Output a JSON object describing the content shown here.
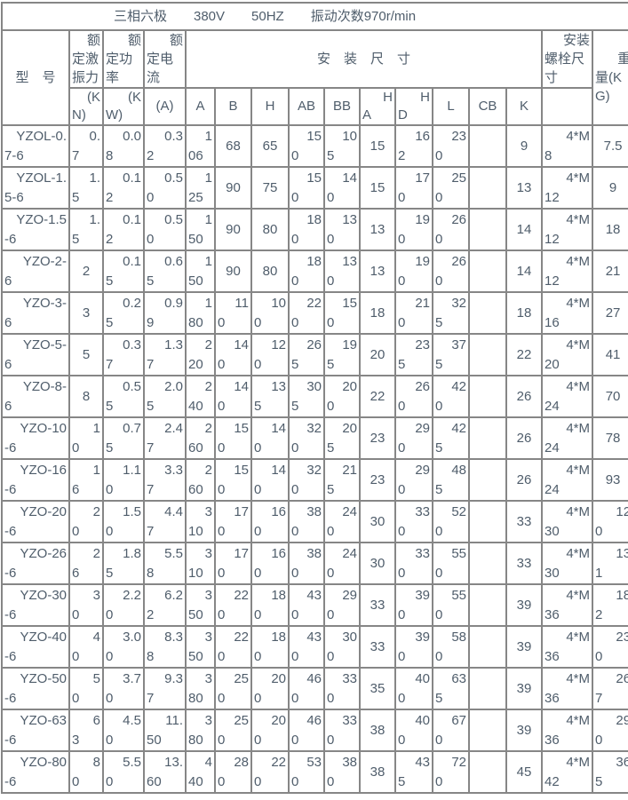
{
  "title": "三相六极　　380V　　50HZ　　振动次数970r/min",
  "table": {
    "headers": {
      "model": "型　号",
      "force": "额定激振力",
      "force_unit": "(KN)",
      "power": "额定功率",
      "power_unit": "(KW)",
      "current": "额定电流",
      "current_unit": "(A)",
      "dims": "安　装　尺　寸",
      "dim_cols": [
        "A",
        "B",
        "H",
        "AB",
        "BB",
        "HA",
        "HD",
        "L",
        "CB",
        "K"
      ],
      "bolt": "安装螺栓尺寸",
      "weight": "重量(KG)"
    },
    "rows": [
      {
        "model": "YZOL-0.7-6",
        "force": "0.7",
        "power": "0.08",
        "current": "0.32",
        "A": "106",
        "B": "68",
        "H": "65",
        "AB": "150",
        "BB": "105",
        "HA": "15",
        "HD": "162",
        "L": "230",
        "CB": "",
        "K": "9",
        "bolt": "4*M8",
        "weight": "7.5"
      },
      {
        "model": "YZOL-1.5-6",
        "force": "1.5",
        "power": "0.12",
        "current": "0.50",
        "A": "125",
        "B": "90",
        "H": "75",
        "AB": "150",
        "BB": "140",
        "HA": "15",
        "HD": "170",
        "L": "250",
        "CB": "",
        "K": "13",
        "bolt": "4*M12",
        "weight": "9"
      },
      {
        "model": "YZO-1.5-6",
        "force": "1.5",
        "power": "0.12",
        "current": "0.50",
        "A": "150",
        "B": "90",
        "H": "80",
        "AB": "180",
        "BB": "130",
        "HA": "13",
        "HD": "190",
        "L": "260",
        "CB": "",
        "K": "14",
        "bolt": "4*M12",
        "weight": "18"
      },
      {
        "model": "YZO-2-6",
        "force": "2",
        "power": "0.15",
        "current": "0.65",
        "A": "150",
        "B": "90",
        "H": "80",
        "AB": "180",
        "BB": "130",
        "HA": "13",
        "HD": "190",
        "L": "260",
        "CB": "",
        "K": "14",
        "bolt": "4*M12",
        "weight": "21"
      },
      {
        "model": "YZO-3-6",
        "force": "3",
        "power": "0.25",
        "current": "0.99",
        "A": "180",
        "B": "110",
        "H": "100",
        "AB": "220",
        "BB": "150",
        "HA": "18",
        "HD": "210",
        "L": "325",
        "CB": "",
        "K": "18",
        "bolt": "4*M16",
        "weight": "27"
      },
      {
        "model": "YZO-5-6",
        "force": "5",
        "power": "0.37",
        "current": "1.37",
        "A": "220",
        "B": "140",
        "H": "120",
        "AB": "265",
        "BB": "195",
        "HA": "20",
        "HD": "235",
        "L": "375",
        "CB": "",
        "K": "22",
        "bolt": "4*M20",
        "weight": "41"
      },
      {
        "model": "YZO-8-6",
        "force": "8",
        "power": "0.55",
        "current": "2.05",
        "A": "240",
        "B": "140",
        "H": "135",
        "AB": "305",
        "BB": "200",
        "HA": "22",
        "HD": "260",
        "L": "420",
        "CB": "",
        "K": "26",
        "bolt": "4*M24",
        "weight": "70"
      },
      {
        "model": "YZO-10-6",
        "force": "10",
        "power": "0.75",
        "current": "2.47",
        "A": "260",
        "B": "150",
        "H": "140",
        "AB": "320",
        "BB": "205",
        "HA": "23",
        "HD": "290",
        "L": "425",
        "CB": "",
        "K": "26",
        "bolt": "4*M24",
        "weight": "78"
      },
      {
        "model": "YZO-16-6",
        "force": "16",
        "power": "1.10",
        "current": "3.37",
        "A": "260",
        "B": "150",
        "H": "140",
        "AB": "320",
        "BB": "215",
        "HA": "23",
        "HD": "290",
        "L": "485",
        "CB": "",
        "K": "26",
        "bolt": "4*M24",
        "weight": "93"
      },
      {
        "model": "YZO-20-6",
        "force": "20",
        "power": "1.50",
        "current": "4.47",
        "A": "310",
        "B": "170",
        "H": "160",
        "AB": "380",
        "BB": "240",
        "HA": "30",
        "HD": "330",
        "L": "520",
        "CB": "",
        "K": "33",
        "bolt": "4*M30",
        "weight": "120"
      },
      {
        "model": "YZO-26-6",
        "force": "26",
        "power": "1.85",
        "current": "5.58",
        "A": "310",
        "B": "170",
        "H": "160",
        "AB": "380",
        "BB": "240",
        "HA": "30",
        "HD": "330",
        "L": "550",
        "CB": "",
        "K": "33",
        "bolt": "4*M30",
        "weight": "131"
      },
      {
        "model": "YZO-30-6",
        "force": "30",
        "power": "2.20",
        "current": "6.22",
        "A": "350",
        "B": "220",
        "H": "180",
        "AB": "430",
        "BB": "290",
        "HA": "33",
        "HD": "390",
        "L": "550",
        "CB": "",
        "K": "39",
        "bolt": "4*M36",
        "weight": "182"
      },
      {
        "model": "YZO-40-6",
        "force": "40",
        "power": "3.00",
        "current": "8.38",
        "A": "350",
        "B": "220",
        "H": "180",
        "AB": "430",
        "BB": "300",
        "HA": "33",
        "HD": "390",
        "L": "580",
        "CB": "",
        "K": "39",
        "bolt": "4*M36",
        "weight": "230"
      },
      {
        "model": "YZO-50-6",
        "force": "50",
        "power": "3.70",
        "current": "9.37",
        "A": "380",
        "B": "250",
        "H": "200",
        "AB": "460",
        "BB": "330",
        "HA": "35",
        "HD": "400",
        "L": "635",
        "CB": "",
        "K": "39",
        "bolt": "4*M36",
        "weight": "267"
      },
      {
        "model": "YZO-63-6",
        "force": "63",
        "power": "4.50",
        "current": "11.50",
        "A": "380",
        "B": "250",
        "H": "200",
        "AB": "460",
        "BB": "330",
        "HA": "38",
        "HD": "400",
        "L": "670",
        "CB": "",
        "K": "39",
        "bolt": "4*M36",
        "weight": "290"
      },
      {
        "model": "YZO-80-6",
        "force": "80",
        "power": "5.50",
        "current": "13.60",
        "A": "440",
        "B": "280",
        "H": "220",
        "AB": "530",
        "BB": "380",
        "HA": "38",
        "HD": "435",
        "L": "720",
        "CB": "",
        "K": "45",
        "bolt": "4*M42",
        "weight": "365"
      }
    ]
  }
}
